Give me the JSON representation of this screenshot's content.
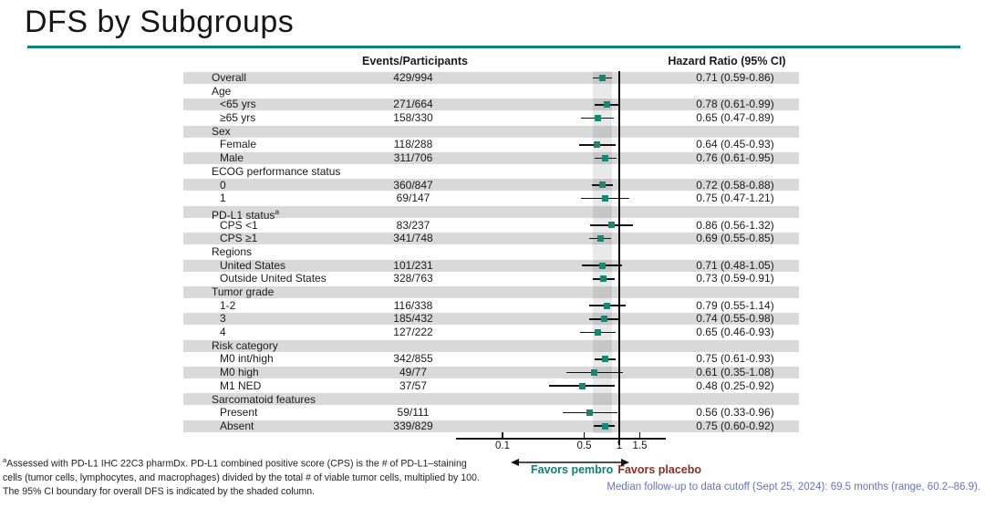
{
  "slide": {
    "title": "DFS by Subgroups"
  },
  "table": {
    "events_header": "Events/Participants",
    "hr_header": "Hazard Ratio (95% CI)"
  },
  "chart_data": {
    "type": "forest",
    "title": "DFS by Subgroups",
    "x_axis": {
      "scale": "log",
      "tick_labels": [
        "0.1",
        "0.5",
        "1",
        "1.5"
      ],
      "tick_values": [
        0.1,
        0.5,
        1,
        1.5
      ],
      "reference_line": 1,
      "shaded_band": {
        "lo": 0.59,
        "hi": 0.86
      }
    },
    "rows": [
      {
        "label": "Overall",
        "indent": 0,
        "events": "429/994",
        "hr": 0.71,
        "lo": 0.59,
        "hi": 0.86,
        "hr_text": "0.71 (0.59-0.86)"
      },
      {
        "label": "Age",
        "category": true
      },
      {
        "label": "<65 yrs",
        "indent": 1,
        "events": "271/664",
        "hr": 0.78,
        "lo": 0.61,
        "hi": 0.99,
        "hr_text": "0.78 (0.61-0.99)"
      },
      {
        "label": "≥65 yrs",
        "indent": 1,
        "events": "158/330",
        "hr": 0.65,
        "lo": 0.47,
        "hi": 0.89,
        "hr_text": "0.65 (0.47-0.89)"
      },
      {
        "label": "Sex",
        "category": true
      },
      {
        "label": "Female",
        "indent": 1,
        "events": "118/288",
        "hr": 0.64,
        "lo": 0.45,
        "hi": 0.93,
        "hr_text": "0.64 (0.45-0.93)"
      },
      {
        "label": "Male",
        "indent": 1,
        "events": "311/706",
        "hr": 0.76,
        "lo": 0.61,
        "hi": 0.95,
        "hr_text": "0.76 (0.61-0.95)"
      },
      {
        "label": "ECOG performance status",
        "category": true
      },
      {
        "label": "0",
        "indent": 1,
        "events": "360/847",
        "hr": 0.72,
        "lo": 0.58,
        "hi": 0.88,
        "hr_text": "0.72 (0.58-0.88)"
      },
      {
        "label": "1",
        "indent": 1,
        "events": "69/147",
        "hr": 0.75,
        "lo": 0.47,
        "hi": 1.21,
        "hr_text": "0.75 (0.47-1.21)"
      },
      {
        "label": "PD-L1 status",
        "sup": "a",
        "category": true
      },
      {
        "label": "CPS <1",
        "indent": 1,
        "events": "83/237",
        "hr": 0.86,
        "lo": 0.56,
        "hi": 1.32,
        "hr_text": "0.86 (0.56-1.32)"
      },
      {
        "label": "CPS ≥1",
        "indent": 1,
        "events": "341/748",
        "hr": 0.69,
        "lo": 0.55,
        "hi": 0.85,
        "hr_text": "0.69 (0.55-0.85)"
      },
      {
        "label": "Regions",
        "category": true
      },
      {
        "label": "United States",
        "indent": 1,
        "events": "101/231",
        "hr": 0.71,
        "lo": 0.48,
        "hi": 1.05,
        "hr_text": "0.71 (0.48-1.05)"
      },
      {
        "label": "Outside United States",
        "indent": 1,
        "events": "328/763",
        "hr": 0.73,
        "lo": 0.59,
        "hi": 0.91,
        "hr_text": "0.73 (0.59-0.91)"
      },
      {
        "label": "Tumor grade",
        "category": true
      },
      {
        "label": "1-2",
        "indent": 1,
        "events": "116/338",
        "hr": 0.79,
        "lo": 0.55,
        "hi": 1.14,
        "hr_text": "0.79 (0.55-1.14)"
      },
      {
        "label": "3",
        "indent": 1,
        "events": "185/432",
        "hr": 0.74,
        "lo": 0.55,
        "hi": 0.98,
        "hr_text": "0.74 (0.55-0.98)"
      },
      {
        "label": "4",
        "indent": 1,
        "events": "127/222",
        "hr": 0.65,
        "lo": 0.46,
        "hi": 0.93,
        "hr_text": "0.65 (0.46-0.93)"
      },
      {
        "label": "Risk category",
        "category": true
      },
      {
        "label": "M0 int/high",
        "indent": 1,
        "events": "342/855",
        "hr": 0.75,
        "lo": 0.61,
        "hi": 0.93,
        "hr_text": "0.75 (0.61-0.93)"
      },
      {
        "label": "M0 high",
        "indent": 1,
        "events": "49/77",
        "hr": 0.61,
        "lo": 0.35,
        "hi": 1.08,
        "hr_text": "0.61 (0.35-1.08)"
      },
      {
        "label": "M1 NED",
        "indent": 1,
        "events": "37/57",
        "hr": 0.48,
        "lo": 0.25,
        "hi": 0.92,
        "hr_text": "0.48 (0.25-0.92)"
      },
      {
        "label": "Sarcomatoid features",
        "category": true
      },
      {
        "label": "Present",
        "indent": 1,
        "events": "59/111",
        "hr": 0.56,
        "lo": 0.33,
        "hi": 0.96,
        "hr_text": "0.56 (0.33-0.96)"
      },
      {
        "label": "Absent",
        "indent": 1,
        "events": "339/829",
        "hr": 0.75,
        "lo": 0.6,
        "hi": 0.92,
        "hr_text": "0.75 (0.60-0.92)"
      }
    ]
  },
  "axis_footer": {
    "favors_left": "Favors pembro",
    "favors_right": "Favors placebo"
  },
  "footnotes": {
    "sup": "a",
    "line1": "Assessed with PD-L1 IHC 22C3 pharmDx. PD-L1 combined positive score (CPS) is the # of PD-L1–staining",
    "line2": "cells (tumor cells, lymphocytes, and macrophages) divided by the total # of viable tumor cells, multiplied by 100.",
    "line3": "The 95% CI boundary for overall DFS is indicated by the shaded column."
  },
  "footer_note": "Median follow-up to data cutoff (Sept 25, 2024): 69.5 months (range, 60.2–86.9).",
  "colors": {
    "accent_teal": "#0f8280",
    "marker_teal": "#1a8574",
    "favors_pembro": "#127f72",
    "favors_placebo": "#8b2e23",
    "row_band": "#d9d9d9",
    "followup_blue": "#6673b8"
  }
}
